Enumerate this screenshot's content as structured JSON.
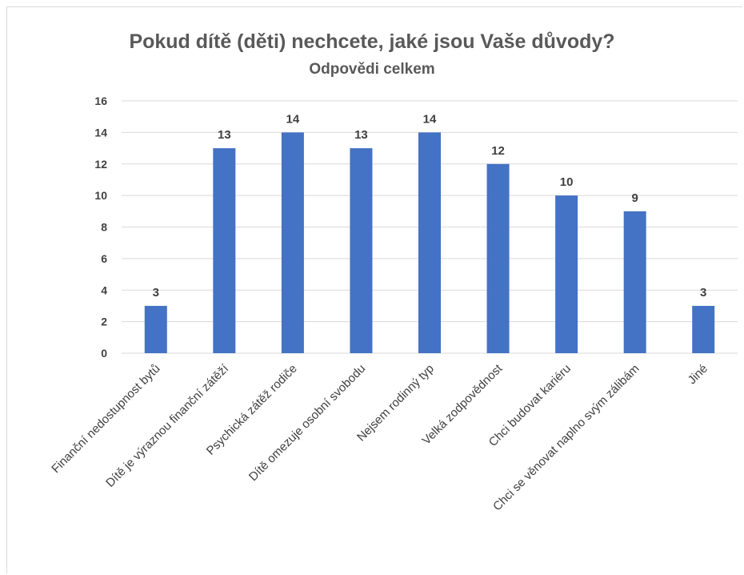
{
  "chart_data": {
    "type": "bar",
    "title": "Pokud dítě (děti) nechcete, jaké jsou Vaše důvody?",
    "subtitle": "Odpovědi celkem",
    "xlabel": "",
    "ylabel": "",
    "ylim": [
      0,
      16
    ],
    "yticks": [
      0,
      2,
      4,
      6,
      8,
      10,
      12,
      14,
      16
    ],
    "grid": true,
    "legend": "none",
    "categories": [
      "Finanční nedostupnost bytů",
      "Dítě je výraznou finanční zátěží",
      "Psychická zátěž rodiče",
      "Dítě omezuje osobní svobodu",
      "Nejsem rodinný typ",
      "Velká zodpovědnost",
      "Chci budovat kariéru",
      "Chci se věnovat naplno svým zálibám",
      "Jiné"
    ],
    "values": [
      3,
      13,
      14,
      13,
      14,
      12,
      10,
      9,
      3
    ],
    "bar_color": "#4472c4",
    "grid_color": "#d9d9d9"
  }
}
